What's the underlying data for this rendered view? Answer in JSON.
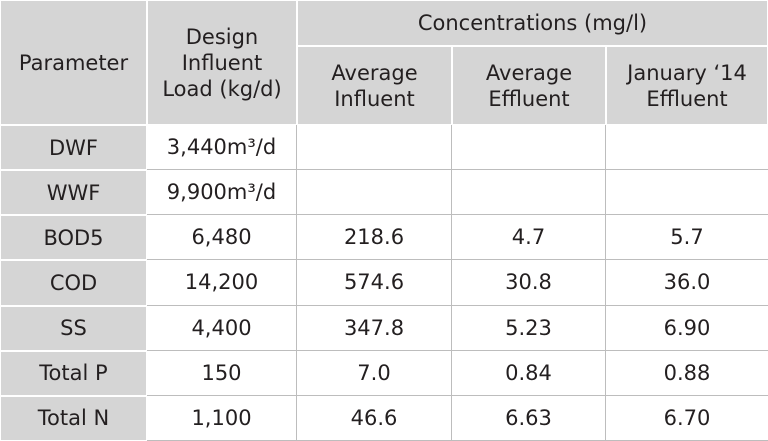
{
  "header": {
    "parameter": "Parameter",
    "design_load": [
      "Design",
      "Influent",
      "Load (kg/d)"
    ],
    "concentrations": "Concentrations (mg/l)",
    "columns": [
      [
        "Average",
        "Influent"
      ],
      [
        "Average",
        "Effluent"
      ],
      [
        "January ‘14",
        "Effluent"
      ]
    ]
  },
  "rows": [
    [
      "DWF",
      "3,440m³/d"
    ],
    [
      "WWF",
      "9,900m³/d"
    ],
    [
      "BOD5",
      "6,480",
      "218.6",
      "4.7",
      "5.7"
    ],
    [
      "COD",
      "14,200",
      "574.6",
      "30.8",
      "36.0"
    ],
    [
      "SS",
      "4,400",
      "347.8",
      "5.23",
      "6.90"
    ],
    [
      "Total P",
      "150",
      "7.0",
      "0.84",
      "0.88"
    ],
    [
      "Total N",
      "1,100",
      "46.6",
      "6.63",
      "6.70"
    ]
  ]
}
